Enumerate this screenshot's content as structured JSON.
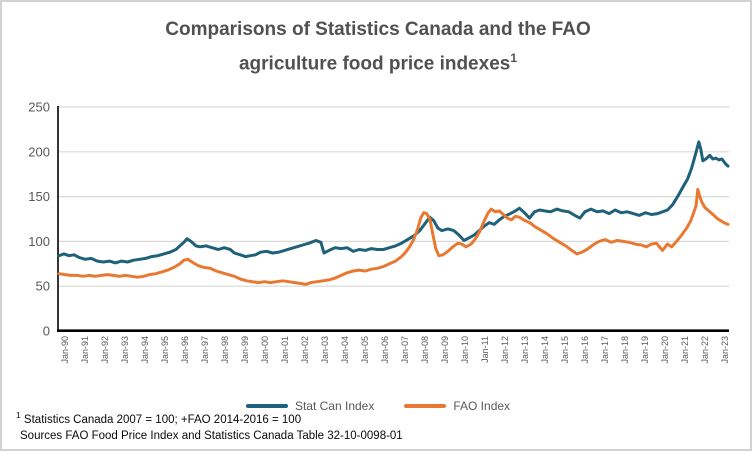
{
  "title": {
    "line1": "Comparisons of Statistics Canada and the FAO",
    "line2": "agriculture food price indexes",
    "superscript": "1"
  },
  "legend": {
    "items": [
      {
        "label": "Stat Can Index",
        "color": "#1f607a"
      },
      {
        "label": "FAO Index",
        "color": "#e87932"
      }
    ]
  },
  "footnotes": {
    "note_superscript": "1",
    "note_text": " Statistics Canada 2007 = 100; +FAO 2014-2016 = 100",
    "sources": "Sources FAO Food Price Index and Statistics Canada Table 32-10-0098-01"
  },
  "colors": {
    "statcan": "#1f607a",
    "fao": "#e87932",
    "gridline": "#d9d9d9",
    "axis": "#000000",
    "tick_label": "#595959"
  },
  "chart_data": {
    "type": "line",
    "title": "Comparisons of Statistics Canada and the FAO agriculture food price indexes",
    "xlabel": "",
    "ylabel": "",
    "ylim": [
      0,
      250
    ],
    "yticks": [
      0,
      50,
      100,
      150,
      200,
      250
    ],
    "grid": true,
    "legend_position": "bottom",
    "x_tick_labels": [
      "Jan-90",
      "Jan-91",
      "Jan-92",
      "Jan-93",
      "Jan-94",
      "Jan-95",
      "Jan-96",
      "Jan-97",
      "Jan-98",
      "Jan-99",
      "Jan-00",
      "Jan-01",
      "Jan-02",
      "Jan-03",
      "Jan-04",
      "Jan-05",
      "Jan-06",
      "Jan-07",
      "Jan-08",
      "Jan-09",
      "Jan-10",
      "Jan-11",
      "Jan-12",
      "Jan-13",
      "Jan-14",
      "Jan-15",
      "Jan-16",
      "Jan-17",
      "Jan-18",
      "Jan-19",
      "Jan-20",
      "Jan-21",
      "Jan-22",
      "Jan-23"
    ],
    "x_range": [
      1990.0,
      2023.2
    ],
    "series": [
      {
        "name": "Stat Can Index",
        "color": "#1f607a",
        "points": [
          [
            1990.0,
            84
          ],
          [
            1990.25,
            86
          ],
          [
            1990.5,
            84
          ],
          [
            1990.75,
            85
          ],
          [
            1991.0,
            82
          ],
          [
            1991.3,
            80
          ],
          [
            1991.6,
            81
          ],
          [
            1991.9,
            78
          ],
          [
            1992.2,
            77
          ],
          [
            1992.5,
            78
          ],
          [
            1992.8,
            76
          ],
          [
            1993.1,
            78
          ],
          [
            1993.4,
            77
          ],
          [
            1993.7,
            79
          ],
          [
            1994.0,
            80
          ],
          [
            1994.3,
            81
          ],
          [
            1994.6,
            83
          ],
          [
            1994.9,
            84
          ],
          [
            1995.2,
            86
          ],
          [
            1995.5,
            88
          ],
          [
            1995.8,
            91
          ],
          [
            1996.0,
            95
          ],
          [
            1996.2,
            99
          ],
          [
            1996.35,
            103
          ],
          [
            1996.55,
            100
          ],
          [
            1996.8,
            95
          ],
          [
            1997.0,
            94
          ],
          [
            1997.3,
            95
          ],
          [
            1997.6,
            93
          ],
          [
            1997.9,
            91
          ],
          [
            1998.2,
            93
          ],
          [
            1998.5,
            91
          ],
          [
            1998.7,
            87
          ],
          [
            1999.0,
            85
          ],
          [
            1999.25,
            83
          ],
          [
            1999.5,
            84
          ],
          [
            1999.75,
            85
          ],
          [
            2000.0,
            88
          ],
          [
            2000.3,
            89
          ],
          [
            2000.6,
            87
          ],
          [
            2000.9,
            88
          ],
          [
            2001.2,
            90
          ],
          [
            2001.5,
            92
          ],
          [
            2001.8,
            94
          ],
          [
            2002.1,
            96
          ],
          [
            2002.4,
            98
          ],
          [
            2002.75,
            101
          ],
          [
            2003.0,
            99
          ],
          [
            2003.15,
            87
          ],
          [
            2003.4,
            90
          ],
          [
            2003.7,
            93
          ],
          [
            2004.0,
            92
          ],
          [
            2004.3,
            93
          ],
          [
            2004.6,
            89
          ],
          [
            2004.9,
            91
          ],
          [
            2005.2,
            90
          ],
          [
            2005.5,
            92
          ],
          [
            2005.8,
            91
          ],
          [
            2006.1,
            91
          ],
          [
            2006.4,
            93
          ],
          [
            2006.7,
            95
          ],
          [
            2007.0,
            98
          ],
          [
            2007.3,
            102
          ],
          [
            2007.6,
            106
          ],
          [
            2007.9,
            112
          ],
          [
            2008.1,
            118
          ],
          [
            2008.4,
            127
          ],
          [
            2008.6,
            123
          ],
          [
            2008.8,
            115
          ],
          [
            2009.0,
            112
          ],
          [
            2009.3,
            114
          ],
          [
            2009.6,
            112
          ],
          [
            2009.85,
            107
          ],
          [
            2010.1,
            101
          ],
          [
            2010.35,
            104
          ],
          [
            2010.6,
            107
          ],
          [
            2010.85,
            112
          ],
          [
            2011.1,
            117
          ],
          [
            2011.35,
            121
          ],
          [
            2011.6,
            119
          ],
          [
            2011.85,
            124
          ],
          [
            2012.1,
            128
          ],
          [
            2012.4,
            131
          ],
          [
            2012.65,
            134
          ],
          [
            2012.85,
            137
          ],
          [
            2013.1,
            132
          ],
          [
            2013.35,
            126
          ],
          [
            2013.6,
            133
          ],
          [
            2013.85,
            135
          ],
          [
            2014.1,
            134
          ],
          [
            2014.4,
            133
          ],
          [
            2014.7,
            136
          ],
          [
            2015.0,
            134
          ],
          [
            2015.3,
            133
          ],
          [
            2015.6,
            129
          ],
          [
            2015.85,
            126
          ],
          [
            2016.1,
            133
          ],
          [
            2016.4,
            136
          ],
          [
            2016.7,
            133
          ],
          [
            2017.0,
            134
          ],
          [
            2017.3,
            131
          ],
          [
            2017.6,
            135
          ],
          [
            2017.9,
            132
          ],
          [
            2018.2,
            133
          ],
          [
            2018.5,
            131
          ],
          [
            2018.8,
            129
          ],
          [
            2019.1,
            132
          ],
          [
            2019.4,
            130
          ],
          [
            2019.7,
            131
          ],
          [
            2019.95,
            133
          ],
          [
            2020.2,
            135
          ],
          [
            2020.45,
            141
          ],
          [
            2020.7,
            150
          ],
          [
            2020.95,
            160
          ],
          [
            2021.2,
            170
          ],
          [
            2021.4,
            182
          ],
          [
            2021.6,
            198
          ],
          [
            2021.75,
            211
          ],
          [
            2021.85,
            203
          ],
          [
            2021.95,
            190
          ],
          [
            2022.1,
            192
          ],
          [
            2022.3,
            196
          ],
          [
            2022.45,
            192
          ],
          [
            2022.6,
            193
          ],
          [
            2022.75,
            191
          ],
          [
            2022.9,
            192
          ],
          [
            2023.0,
            189
          ],
          [
            2023.1,
            186
          ],
          [
            2023.2,
            184
          ]
        ]
      },
      {
        "name": "FAO Index",
        "color": "#e87932",
        "points": [
          [
            1990.0,
            64
          ],
          [
            1990.3,
            63
          ],
          [
            1990.6,
            62
          ],
          [
            1990.9,
            62
          ],
          [
            1991.2,
            61
          ],
          [
            1991.5,
            62
          ],
          [
            1991.8,
            61
          ],
          [
            1992.1,
            62
          ],
          [
            1992.4,
            63
          ],
          [
            1992.7,
            62
          ],
          [
            1993.0,
            61
          ],
          [
            1993.3,
            62
          ],
          [
            1993.6,
            61
          ],
          [
            1993.9,
            60
          ],
          [
            1994.2,
            61
          ],
          [
            1994.5,
            63
          ],
          [
            1994.8,
            64
          ],
          [
            1995.1,
            66
          ],
          [
            1995.4,
            68
          ],
          [
            1995.7,
            71
          ],
          [
            1996.0,
            75
          ],
          [
            1996.2,
            79
          ],
          [
            1996.4,
            80
          ],
          [
            1996.6,
            77
          ],
          [
            1996.9,
            73
          ],
          [
            1997.2,
            71
          ],
          [
            1997.5,
            70
          ],
          [
            1997.8,
            67
          ],
          [
            1998.1,
            65
          ],
          [
            1998.4,
            63
          ],
          [
            1998.7,
            61
          ],
          [
            1999.0,
            58
          ],
          [
            1999.3,
            56
          ],
          [
            1999.6,
            55
          ],
          [
            1999.9,
            54
          ],
          [
            2000.2,
            55
          ],
          [
            2000.5,
            54
          ],
          [
            2000.8,
            55
          ],
          [
            2001.1,
            56
          ],
          [
            2001.4,
            55
          ],
          [
            2001.7,
            54
          ],
          [
            2002.0,
            53
          ],
          [
            2002.25,
            52
          ],
          [
            2002.5,
            54
          ],
          [
            2002.8,
            55
          ],
          [
            2003.1,
            56
          ],
          [
            2003.4,
            57
          ],
          [
            2003.7,
            59
          ],
          [
            2004.0,
            62
          ],
          [
            2004.3,
            65
          ],
          [
            2004.6,
            67
          ],
          [
            2004.9,
            68
          ],
          [
            2005.2,
            67
          ],
          [
            2005.5,
            69
          ],
          [
            2005.8,
            70
          ],
          [
            2006.1,
            72
          ],
          [
            2006.4,
            75
          ],
          [
            2006.7,
            78
          ],
          [
            2007.0,
            83
          ],
          [
            2007.2,
            88
          ],
          [
            2007.4,
            94
          ],
          [
            2007.6,
            102
          ],
          [
            2007.8,
            114
          ],
          [
            2007.95,
            126
          ],
          [
            2008.1,
            132
          ],
          [
            2008.25,
            131
          ],
          [
            2008.4,
            125
          ],
          [
            2008.55,
            108
          ],
          [
            2008.7,
            92
          ],
          [
            2008.85,
            84
          ],
          [
            2009.05,
            85
          ],
          [
            2009.3,
            89
          ],
          [
            2009.55,
            94
          ],
          [
            2009.8,
            98
          ],
          [
            2010.0,
            97
          ],
          [
            2010.2,
            94
          ],
          [
            2010.45,
            97
          ],
          [
            2010.7,
            104
          ],
          [
            2010.9,
            112
          ],
          [
            2011.1,
            123
          ],
          [
            2011.3,
            132
          ],
          [
            2011.45,
            136
          ],
          [
            2011.65,
            133
          ],
          [
            2011.85,
            134
          ],
          [
            2012.05,
            130
          ],
          [
            2012.25,
            126
          ],
          [
            2012.45,
            124
          ],
          [
            2012.65,
            128
          ],
          [
            2012.85,
            127
          ],
          [
            2013.05,
            124
          ],
          [
            2013.35,
            121
          ],
          [
            2013.65,
            116
          ],
          [
            2013.95,
            112
          ],
          [
            2014.25,
            108
          ],
          [
            2014.55,
            103
          ],
          [
            2014.85,
            99
          ],
          [
            2015.15,
            95
          ],
          [
            2015.45,
            90
          ],
          [
            2015.7,
            86
          ],
          [
            2015.95,
            88
          ],
          [
            2016.2,
            91
          ],
          [
            2016.5,
            96
          ],
          [
            2016.8,
            100
          ],
          [
            2017.1,
            102
          ],
          [
            2017.4,
            99
          ],
          [
            2017.7,
            101
          ],
          [
            2018.0,
            100
          ],
          [
            2018.3,
            99
          ],
          [
            2018.6,
            97
          ],
          [
            2018.9,
            96
          ],
          [
            2019.15,
            94
          ],
          [
            2019.4,
            97
          ],
          [
            2019.65,
            98
          ],
          [
            2019.95,
            90
          ],
          [
            2020.2,
            97
          ],
          [
            2020.4,
            94
          ],
          [
            2020.65,
            100
          ],
          [
            2020.9,
            107
          ],
          [
            2021.15,
            115
          ],
          [
            2021.35,
            123
          ],
          [
            2021.5,
            132
          ],
          [
            2021.62,
            140
          ],
          [
            2021.7,
            158
          ],
          [
            2021.8,
            150
          ],
          [
            2021.9,
            144
          ],
          [
            2022.05,
            138
          ],
          [
            2022.2,
            135
          ],
          [
            2022.35,
            132
          ],
          [
            2022.5,
            129
          ],
          [
            2022.7,
            125
          ],
          [
            2022.85,
            123
          ],
          [
            2023.0,
            121
          ],
          [
            2023.1,
            120
          ],
          [
            2023.2,
            119
          ]
        ]
      }
    ]
  }
}
